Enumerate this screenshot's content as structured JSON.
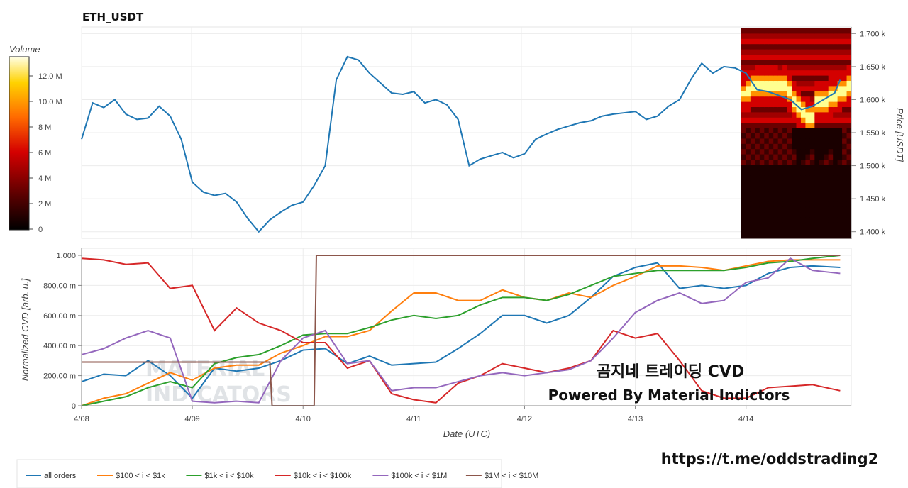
{
  "chart_data": [
    {
      "type": "line",
      "title": "ETH_USDT",
      "ylabel": "Price [USDT]",
      "ylim": [
        1390,
        1710
      ],
      "yticks": [
        "1.400 k",
        "1.450 k",
        "1.500 k",
        "1.550 k",
        "1.600 k",
        "1.650 k",
        "1.700 k"
      ],
      "ytick_values": [
        1400,
        1450,
        1500,
        1550,
        1600,
        1650,
        1700
      ],
      "grid": true,
      "series": [
        {
          "color": "#1f77b4",
          "x": [
            0,
            0.1,
            0.2,
            0.3,
            0.4,
            0.5,
            0.6,
            0.7,
            0.8,
            0.9,
            1.0,
            1.1,
            1.2,
            1.3,
            1.4,
            1.5,
            1.6,
            1.7,
            1.8,
            1.9,
            2.0,
            2.1,
            2.2,
            2.3,
            2.4,
            2.5,
            2.6,
            2.7,
            2.8,
            2.9,
            3.0,
            3.1,
            3.2,
            3.3,
            3.4,
            3.5,
            3.6,
            3.7,
            3.8,
            3.9,
            4.0,
            4.1,
            4.2,
            4.3,
            4.4,
            4.5,
            4.6,
            4.7,
            4.8,
            4.9,
            5.0,
            5.1,
            5.2,
            5.3,
            5.4,
            5.5,
            5.6,
            5.7,
            5.8,
            5.9,
            6.0,
            6.1,
            6.2,
            6.3,
            6.4,
            6.5,
            6.6,
            6.7,
            6.8,
            6.9
          ],
          "values": [
            1540,
            1595,
            1588,
            1600,
            1578,
            1570,
            1572,
            1590,
            1575,
            1540,
            1475,
            1460,
            1455,
            1458,
            1445,
            1420,
            1400,
            1418,
            1430,
            1440,
            1445,
            1470,
            1500,
            1630,
            1665,
            1660,
            1640,
            1625,
            1610,
            1608,
            1612,
            1595,
            1600,
            1592,
            1570,
            1500,
            1510,
            1515,
            1520,
            1512,
            1518,
            1540,
            1548,
            1555,
            1560,
            1565,
            1568,
            1575,
            1578,
            1580,
            1582,
            1570,
            1575,
            1590,
            1600,
            1630,
            1655,
            1640,
            1650,
            1648,
            1640,
            1615,
            1612,
            1606,
            1600,
            1585,
            1590,
            1600,
            1610,
            1630
          ],
          "x_note": "days offset not used"
        }
      ],
      "colorbar": {
        "label": "Volume",
        "ticks": [
          "0",
          "2 M",
          "4 M",
          "6 M",
          "8 M",
          "10.0 M",
          "12.0 M"
        ]
      }
    },
    {
      "type": "line",
      "ylabel": "Normalized CVD [arb. u.]",
      "xlabel": "Date (UTC)",
      "ylim": [
        0,
        1
      ],
      "yticks": [
        "0",
        "200.00 m",
        "400.00 m",
        "600.00 m",
        "800.00 m",
        "1.000"
      ],
      "ytick_values": [
        0,
        0.2,
        0.4,
        0.6,
        0.8,
        1.0
      ],
      "xticks": [
        "4/08",
        "4/09",
        "4/10",
        "4/11",
        "4/12",
        "4/13",
        "4/14"
      ],
      "grid": true,
      "legend_position": "bottom",
      "series": [
        {
          "name": "all orders",
          "color": "#1f77b4",
          "points": [
            [
              0,
              0.16
            ],
            [
              0.2,
              0.21
            ],
            [
              0.4,
              0.2
            ],
            [
              0.6,
              0.3
            ],
            [
              0.8,
              0.2
            ],
            [
              1.0,
              0.05
            ],
            [
              1.2,
              0.25
            ],
            [
              1.4,
              0.23
            ],
            [
              1.6,
              0.25
            ],
            [
              1.8,
              0.3
            ],
            [
              2.0,
              0.37
            ],
            [
              2.2,
              0.38
            ],
            [
              2.4,
              0.28
            ],
            [
              2.6,
              0.33
            ],
            [
              2.8,
              0.27
            ],
            [
              3.0,
              0.28
            ],
            [
              3.2,
              0.29
            ],
            [
              3.4,
              0.38
            ],
            [
              3.6,
              0.48
            ],
            [
              3.8,
              0.6
            ],
            [
              4.0,
              0.6
            ],
            [
              4.2,
              0.55
            ],
            [
              4.4,
              0.6
            ],
            [
              4.6,
              0.72
            ],
            [
              4.8,
              0.86
            ],
            [
              5.0,
              0.92
            ],
            [
              5.2,
              0.95
            ],
            [
              5.4,
              0.78
            ],
            [
              5.6,
              0.8
            ],
            [
              5.8,
              0.78
            ],
            [
              6.0,
              0.8
            ],
            [
              6.2,
              0.88
            ],
            [
              6.4,
              0.92
            ],
            [
              6.6,
              0.93
            ],
            [
              6.85,
              0.92
            ]
          ]
        },
        {
          "name": "$100 < i < $1k",
          "color": "#ff7f0e",
          "points": [
            [
              0,
              0.0
            ],
            [
              0.2,
              0.05
            ],
            [
              0.4,
              0.08
            ],
            [
              0.6,
              0.15
            ],
            [
              0.8,
              0.22
            ],
            [
              1.0,
              0.17
            ],
            [
              1.2,
              0.25
            ],
            [
              1.4,
              0.27
            ],
            [
              1.6,
              0.27
            ],
            [
              1.8,
              0.35
            ],
            [
              2.0,
              0.4
            ],
            [
              2.2,
              0.46
            ],
            [
              2.4,
              0.46
            ],
            [
              2.6,
              0.5
            ],
            [
              2.8,
              0.63
            ],
            [
              3.0,
              0.75
            ],
            [
              3.2,
              0.75
            ],
            [
              3.4,
              0.7
            ],
            [
              3.6,
              0.7
            ],
            [
              3.8,
              0.77
            ],
            [
              4.0,
              0.72
            ],
            [
              4.2,
              0.7
            ],
            [
              4.4,
              0.75
            ],
            [
              4.6,
              0.72
            ],
            [
              4.8,
              0.8
            ],
            [
              5.0,
              0.86
            ],
            [
              5.2,
              0.93
            ],
            [
              5.4,
              0.93
            ],
            [
              5.6,
              0.92
            ],
            [
              5.8,
              0.9
            ],
            [
              6.0,
              0.93
            ],
            [
              6.2,
              0.96
            ],
            [
              6.4,
              0.97
            ],
            [
              6.6,
              0.97
            ],
            [
              6.85,
              0.97
            ]
          ]
        },
        {
          "name": "$1k < i < $10k",
          "color": "#2ca02c",
          "points": [
            [
              0,
              0.0
            ],
            [
              0.2,
              0.03
            ],
            [
              0.4,
              0.06
            ],
            [
              0.6,
              0.12
            ],
            [
              0.8,
              0.16
            ],
            [
              1.0,
              0.12
            ],
            [
              1.2,
              0.28
            ],
            [
              1.4,
              0.32
            ],
            [
              1.6,
              0.34
            ],
            [
              1.8,
              0.4
            ],
            [
              2.0,
              0.47
            ],
            [
              2.2,
              0.48
            ],
            [
              2.4,
              0.48
            ],
            [
              2.6,
              0.52
            ],
            [
              2.8,
              0.57
            ],
            [
              3.0,
              0.6
            ],
            [
              3.2,
              0.58
            ],
            [
              3.4,
              0.6
            ],
            [
              3.6,
              0.67
            ],
            [
              3.8,
              0.72
            ],
            [
              4.0,
              0.72
            ],
            [
              4.2,
              0.7
            ],
            [
              4.4,
              0.74
            ],
            [
              4.6,
              0.8
            ],
            [
              4.8,
              0.86
            ],
            [
              5.0,
              0.88
            ],
            [
              5.2,
              0.9
            ],
            [
              5.4,
              0.9
            ],
            [
              5.6,
              0.9
            ],
            [
              5.8,
              0.9
            ],
            [
              6.0,
              0.92
            ],
            [
              6.2,
              0.95
            ],
            [
              6.4,
              0.96
            ],
            [
              6.6,
              0.98
            ],
            [
              6.85,
              1.0
            ]
          ]
        },
        {
          "name": "$10k < i < $100k",
          "color": "#d62728",
          "points": [
            [
              0,
              0.98
            ],
            [
              0.2,
              0.97
            ],
            [
              0.4,
              0.94
            ],
            [
              0.6,
              0.95
            ],
            [
              0.8,
              0.78
            ],
            [
              1.0,
              0.8
            ],
            [
              1.2,
              0.5
            ],
            [
              1.4,
              0.65
            ],
            [
              1.6,
              0.55
            ],
            [
              1.8,
              0.5
            ],
            [
              2.0,
              0.42
            ],
            [
              2.2,
              0.42
            ],
            [
              2.4,
              0.25
            ],
            [
              2.6,
              0.3
            ],
            [
              2.8,
              0.08
            ],
            [
              3.0,
              0.04
            ],
            [
              3.2,
              0.02
            ],
            [
              3.4,
              0.15
            ],
            [
              3.6,
              0.2
            ],
            [
              3.8,
              0.28
            ],
            [
              4.0,
              0.25
            ],
            [
              4.2,
              0.22
            ],
            [
              4.4,
              0.25
            ],
            [
              4.6,
              0.3
            ],
            [
              4.8,
              0.5
            ],
            [
              5.0,
              0.45
            ],
            [
              5.2,
              0.48
            ],
            [
              5.4,
              0.3
            ],
            [
              5.6,
              0.1
            ],
            [
              5.8,
              0.05
            ],
            [
              6.0,
              0.05
            ],
            [
              6.2,
              0.12
            ],
            [
              6.4,
              0.13
            ],
            [
              6.6,
              0.14
            ],
            [
              6.85,
              0.1
            ]
          ]
        },
        {
          "name": "$100k < i < $1M",
          "color": "#9467bd",
          "points": [
            [
              0,
              0.34
            ],
            [
              0.2,
              0.38
            ],
            [
              0.4,
              0.45
            ],
            [
              0.6,
              0.5
            ],
            [
              0.8,
              0.45
            ],
            [
              1.0,
              0.03
            ],
            [
              1.2,
              0.02
            ],
            [
              1.4,
              0.03
            ],
            [
              1.6,
              0.02
            ],
            [
              1.8,
              0.3
            ],
            [
              2.0,
              0.45
            ],
            [
              2.2,
              0.5
            ],
            [
              2.4,
              0.28
            ],
            [
              2.6,
              0.3
            ],
            [
              2.8,
              0.1
            ],
            [
              3.0,
              0.12
            ],
            [
              3.2,
              0.12
            ],
            [
              3.4,
              0.16
            ],
            [
              3.6,
              0.2
            ],
            [
              3.8,
              0.22
            ],
            [
              4.0,
              0.2
            ],
            [
              4.2,
              0.22
            ],
            [
              4.4,
              0.24
            ],
            [
              4.6,
              0.3
            ],
            [
              4.8,
              0.45
            ],
            [
              5.0,
              0.62
            ],
            [
              5.2,
              0.7
            ],
            [
              5.4,
              0.75
            ],
            [
              5.6,
              0.68
            ],
            [
              5.8,
              0.7
            ],
            [
              6.0,
              0.82
            ],
            [
              6.2,
              0.85
            ],
            [
              6.4,
              0.98
            ],
            [
              6.6,
              0.9
            ],
            [
              6.85,
              0.88
            ]
          ]
        },
        {
          "name": "$1M < i < $10M",
          "color": "#8c564b",
          "points": [
            [
              0,
              0.29
            ],
            [
              1.5,
              0.29
            ],
            [
              1.7,
              0.29
            ],
            [
              1.72,
              0.0
            ],
            [
              2.1,
              0.0
            ],
            [
              2.12,
              1.0
            ],
            [
              6.85,
              1.0
            ]
          ]
        }
      ],
      "annotations": [
        "곰지네 트레이딩 CVD",
        "Powered By Material Indictors"
      ]
    }
  ],
  "watermark": {
    "line1": "곰지네 트레이딩 CVD",
    "line2": "Powered By Material Indictors"
  },
  "logo_text": [
    "MATERIAL",
    "INDICATORS"
  ],
  "url": "https://t.me/oddstrading2"
}
